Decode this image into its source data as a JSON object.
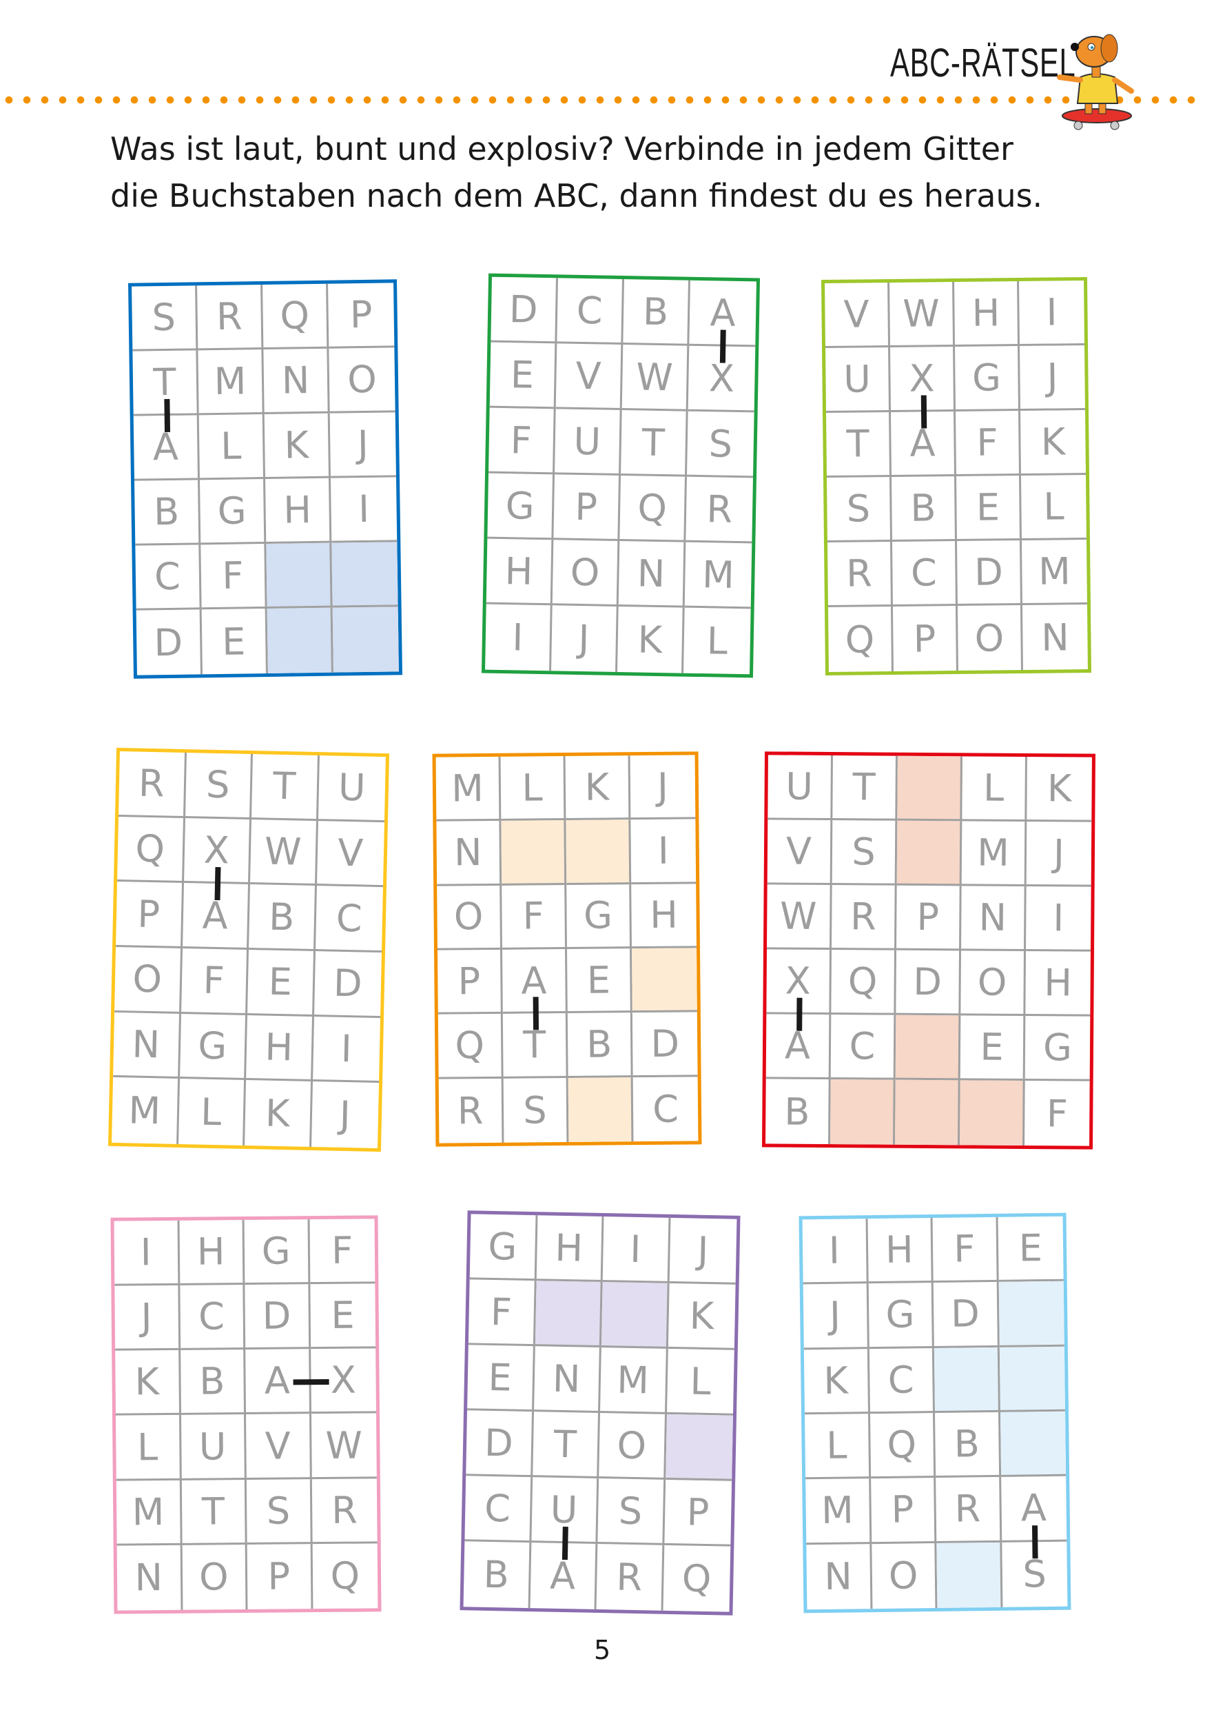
{
  "header": {
    "title": "ABC-RÄTSEL",
    "mascot": "skateboarding-dog-illustration",
    "accent_color": "#f39200"
  },
  "instruction": {
    "line1": "Was ist laut, bunt und explosiv? Verbinde in jedem Gitter",
    "line2": "die Buchstaben nach dem ABC, dann findest du es heraus."
  },
  "grids": [
    {
      "border_color": "#0070c0",
      "shade_color": "#d3dff2",
      "rows": [
        [
          "S",
          "R",
          "Q",
          "P"
        ],
        [
          "T",
          "M",
          "N",
          "O"
        ],
        [
          "A",
          "L",
          "K",
          "J"
        ],
        [
          "B",
          "G",
          "H",
          "I"
        ],
        [
          "C",
          "F",
          "",
          ""
        ],
        [
          "D",
          "E",
          "",
          ""
        ]
      ],
      "shaded": [
        [
          4,
          2
        ],
        [
          4,
          3
        ],
        [
          5,
          2
        ],
        [
          5,
          3
        ]
      ],
      "connector": [
        [
          1,
          0
        ],
        [
          2,
          0
        ]
      ]
    },
    {
      "border_color": "#1fa040",
      "shade_color": "#d9eedc",
      "rows": [
        [
          "D",
          "C",
          "B",
          "A"
        ],
        [
          "E",
          "V",
          "W",
          "X"
        ],
        [
          "F",
          "U",
          "T",
          "S"
        ],
        [
          "G",
          "P",
          "Q",
          "R"
        ],
        [
          "H",
          "O",
          "N",
          "M"
        ],
        [
          "I",
          "J",
          "K",
          "L"
        ]
      ],
      "shaded": [],
      "connector": [
        [
          0,
          3
        ],
        [
          1,
          3
        ]
      ]
    },
    {
      "border_color": "#9dc72a",
      "shade_color": "#ebf4d4",
      "rows": [
        [
          "V",
          "W",
          "H",
          "I"
        ],
        [
          "U",
          "X",
          "G",
          "J"
        ],
        [
          "T",
          "A",
          "F",
          "K"
        ],
        [
          "S",
          "B",
          "E",
          "L"
        ],
        [
          "R",
          "C",
          "D",
          "M"
        ],
        [
          "Q",
          "P",
          "O",
          "N"
        ]
      ],
      "shaded": [],
      "connector": [
        [
          1,
          1
        ],
        [
          2,
          1
        ]
      ]
    },
    {
      "border_color": "#ffc61e",
      "shade_color": "#fff3cc",
      "rows": [
        [
          "R",
          "S",
          "T",
          "U"
        ],
        [
          "Q",
          "X",
          "W",
          "V"
        ],
        [
          "P",
          "A",
          "B",
          "C"
        ],
        [
          "O",
          "F",
          "E",
          "D"
        ],
        [
          "N",
          "G",
          "H",
          "I"
        ],
        [
          "M",
          "L",
          "K",
          "J"
        ]
      ],
      "shaded": [],
      "connector": [
        [
          1,
          1
        ],
        [
          2,
          1
        ]
      ]
    },
    {
      "border_color": "#f39200",
      "shade_color": "#fdebd3",
      "rows": [
        [
          "M",
          "L",
          "K",
          "J"
        ],
        [
          "N",
          "",
          "",
          "I"
        ],
        [
          "O",
          "F",
          "G",
          "H"
        ],
        [
          "P",
          "A",
          "E",
          ""
        ],
        [
          "Q",
          "T",
          "B",
          "D"
        ],
        [
          "R",
          "S",
          "",
          "C"
        ]
      ],
      "shaded": [
        [
          1,
          1
        ],
        [
          1,
          2
        ],
        [
          3,
          3
        ],
        [
          5,
          2
        ]
      ],
      "connector": [
        [
          3,
          1
        ],
        [
          4,
          1
        ]
      ]
    },
    {
      "border_color": "#e30613",
      "shade_color": "#f6d7c8",
      "rows": [
        [
          "U",
          "T",
          "",
          "L",
          "K"
        ],
        [
          "V",
          "S",
          "",
          "M",
          "J"
        ],
        [
          "W",
          "R",
          "P",
          "N",
          "I"
        ],
        [
          "X",
          "Q",
          "D",
          "O",
          "H"
        ],
        [
          "A",
          "C",
          "",
          "E",
          "G"
        ],
        [
          "B",
          "",
          "",
          "",
          "F"
        ]
      ],
      "shaded": [
        [
          0,
          2
        ],
        [
          1,
          2
        ],
        [
          4,
          2
        ],
        [
          5,
          1
        ],
        [
          5,
          2
        ],
        [
          5,
          3
        ]
      ],
      "connector": [
        [
          3,
          0
        ],
        [
          4,
          0
        ]
      ]
    },
    {
      "border_color": "#f29ec0",
      "shade_color": "#fbe1ec",
      "rows": [
        [
          "I",
          "H",
          "G",
          "F"
        ],
        [
          "J",
          "C",
          "D",
          "E"
        ],
        [
          "K",
          "B",
          "A",
          "X"
        ],
        [
          "L",
          "U",
          "V",
          "W"
        ],
        [
          "M",
          "T",
          "S",
          "R"
        ],
        [
          "N",
          "O",
          "P",
          "Q"
        ]
      ],
      "shaded": [],
      "connector": [
        [
          2,
          2
        ],
        [
          2,
          3
        ]
      ]
    },
    {
      "border_color": "#8b6db0",
      "shade_color": "#e2ddf0",
      "rows": [
        [
          "G",
          "H",
          "I",
          "J"
        ],
        [
          "F",
          "",
          "",
          "K"
        ],
        [
          "E",
          "N",
          "M",
          "L"
        ],
        [
          "D",
          "T",
          "O",
          ""
        ],
        [
          "C",
          "U",
          "S",
          "P"
        ],
        [
          "B",
          "A",
          "R",
          "Q"
        ]
      ],
      "shaded": [
        [
          1,
          1
        ],
        [
          1,
          2
        ],
        [
          3,
          3
        ]
      ],
      "connector": [
        [
          4,
          1
        ],
        [
          5,
          1
        ]
      ]
    },
    {
      "border_color": "#7ecff2",
      "shade_color": "#e3f1fb",
      "rows": [
        [
          "I",
          "H",
          "F",
          "E"
        ],
        [
          "J",
          "G",
          "D",
          ""
        ],
        [
          "K",
          "C",
          "",
          ""
        ],
        [
          "L",
          "Q",
          "B",
          ""
        ],
        [
          "M",
          "P",
          "R",
          "A"
        ],
        [
          "N",
          "O",
          "",
          "S"
        ]
      ],
      "shaded": [
        [
          1,
          3
        ],
        [
          2,
          2
        ],
        [
          2,
          3
        ],
        [
          3,
          3
        ],
        [
          5,
          2
        ]
      ],
      "connector": [
        [
          4,
          3
        ],
        [
          5,
          3
        ]
      ]
    }
  ],
  "footer": {
    "page_number": "5"
  }
}
